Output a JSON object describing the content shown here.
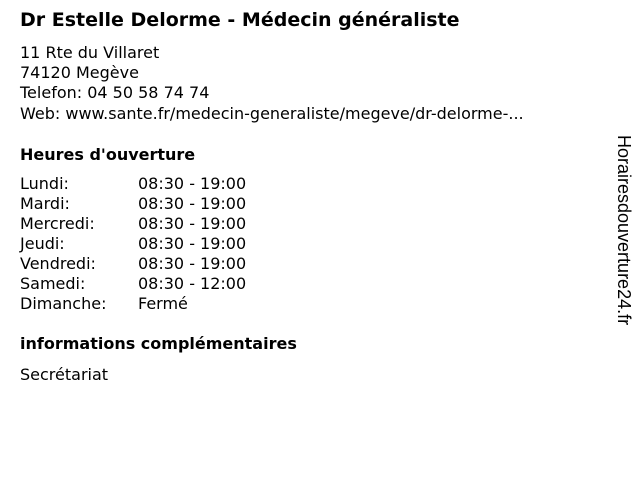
{
  "title": "Dr Estelle Delorme - Médecin généraliste",
  "address": {
    "street": "11 Rte du Villaret",
    "city": "74120 Megève",
    "phone": "Telefon: 04 50 58 74 74",
    "web": "Web: www.sante.fr/medecin-generaliste/megeve/dr-delorme-..."
  },
  "hours": {
    "heading": "Heures d'ouverture",
    "rows": [
      {
        "day": "Lundi:",
        "time": "08:30 - 19:00"
      },
      {
        "day": "Mardi:",
        "time": "08:30 - 19:00"
      },
      {
        "day": "Mercredi:",
        "time": "08:30 - 19:00"
      },
      {
        "day": "Jeudi:",
        "time": "08:30 - 19:00"
      },
      {
        "day": "Vendredi:",
        "time": "08:30 - 19:00"
      },
      {
        "day": "Samedi:",
        "time": "08:30 - 12:00"
      },
      {
        "day": "Dimanche:",
        "time": "Fermé"
      }
    ]
  },
  "info": {
    "heading": "informations complémentaires",
    "text": "Secrétariat"
  },
  "side_brand": "Horairesdouverture24.fr"
}
